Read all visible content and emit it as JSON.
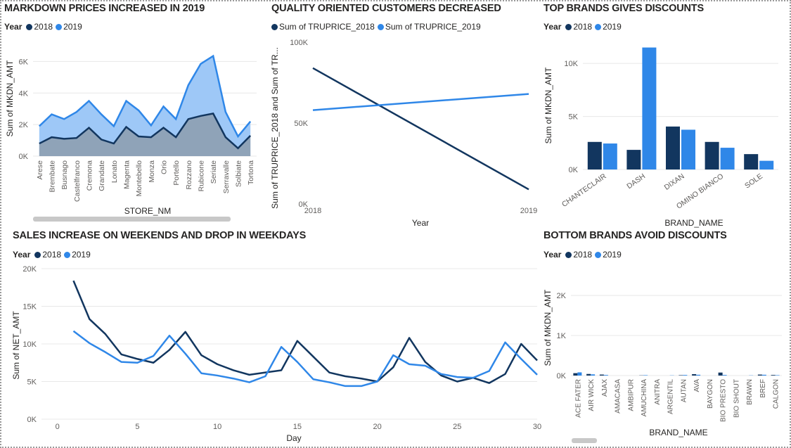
{
  "colors": {
    "dark": "#12365f",
    "light": "#2f87e8",
    "area_light": "#9ec8f7",
    "area_dark": "#8fa3b8",
    "grid": "#e8e8e8"
  },
  "chart_data": [
    {
      "id": "markdown",
      "type": "area",
      "title": "MARKDOWN PRICES INCREASED IN 2019",
      "legend_title": "Year",
      "xlabel": "STORE_NM",
      "ylabel": "Sum of MKDN_AMT",
      "yticks": [
        "0K",
        "2K",
        "4K",
        "6K"
      ],
      "ylim": [
        0,
        7000
      ],
      "categories": [
        "Arese",
        "Brembate",
        "Busnago",
        "Castelfranco",
        "Cremona",
        "Grandate",
        "Lonato",
        "Magenta",
        "Montebello",
        "Monza",
        "Orio",
        "Portello",
        "Rozzano",
        "Rubicone",
        "Seriate",
        "Serravalle",
        "Solbiate",
        "Tortona"
      ],
      "series": [
        {
          "name": "2018",
          "values": [
            800,
            1200,
            1100,
            1150,
            1800,
            1050,
            800,
            1850,
            1250,
            1200,
            1800,
            1200,
            2350,
            2550,
            2700,
            1200,
            500,
            1300
          ]
        },
        {
          "name": "2019",
          "values": [
            1900,
            2650,
            2350,
            2800,
            3500,
            2650,
            1900,
            3500,
            2900,
            1950,
            3150,
            2350,
            4500,
            5850,
            6350,
            2800,
            1250,
            2200
          ]
        }
      ]
    },
    {
      "id": "quality",
      "type": "line",
      "title": "QUALITY ORIENTED CUSTOMERS DECREASED",
      "legend": [
        "Sum of TRUPRICE_2018",
        "Sum of TRUPRICE_2019"
      ],
      "xlabel": "Year",
      "ylabel": "Sum of TRUPRICE_2018 and Sum of TR...",
      "yticks": [
        "0K",
        "50K",
        "100K"
      ],
      "ylim": [
        0,
        100000
      ],
      "x": [
        "2018",
        "2019"
      ],
      "series": [
        {
          "name": "Sum of TRUPRICE_2018",
          "values": [
            84000,
            9000
          ]
        },
        {
          "name": "Sum of TRUPRICE_2019",
          "values": [
            58000,
            68000
          ]
        }
      ]
    },
    {
      "id": "top_brands",
      "type": "bar",
      "title": "TOP BRANDS GIVES DISCOUNTS",
      "legend_title": "Year",
      "xlabel": "BRAND_NAME",
      "ylabel": "Sum of MKDN_AMT",
      "yticks": [
        "0K",
        "5K",
        "10K"
      ],
      "ylim": [
        0,
        12000
      ],
      "categories": [
        "CHANTECLAIR",
        "DASH",
        "DIXAN",
        "OMINO BIANCO",
        "SOLE"
      ],
      "series": [
        {
          "name": "2018",
          "values": [
            2600,
            1850,
            4050,
            2600,
            1450
          ]
        },
        {
          "name": "2019",
          "values": [
            2450,
            11500,
            3750,
            2050,
            820
          ]
        }
      ]
    },
    {
      "id": "sales",
      "type": "line",
      "title": "SALES INCREASE ON WEEKENDS AND DROP IN WEEKDAYS",
      "legend_title": "Year",
      "xlabel": "Day",
      "ylabel": "Sum of NET_AMT",
      "yticks": [
        "0K",
        "5K",
        "10K",
        "15K",
        "20K"
      ],
      "xticks": [
        "0",
        "5",
        "10",
        "15",
        "20",
        "25",
        "30"
      ],
      "ylim": [
        0,
        20000
      ],
      "xlim": [
        -1,
        30
      ],
      "x": [
        1,
        2,
        3,
        4,
        5,
        6,
        7,
        8,
        9,
        10,
        11,
        12,
        13,
        14,
        15,
        16,
        17,
        18,
        19,
        20,
        21,
        22,
        23,
        24,
        25,
        26,
        27,
        28,
        29,
        30
      ],
      "series": [
        {
          "name": "2018",
          "values": [
            18400,
            13300,
            11300,
            8600,
            8000,
            7500,
            9200,
            11600,
            8500,
            7300,
            6500,
            5900,
            6200,
            6500,
            10400,
            8300,
            6200,
            5700,
            5400,
            5000,
            6900,
            10800,
            7600,
            5800,
            5000,
            5500,
            4800,
            6000,
            10000,
            7800
          ]
        },
        {
          "name": "2019",
          "values": [
            11700,
            10100,
            8900,
            7600,
            7500,
            8400,
            11100,
            8700,
            6100,
            5800,
            5400,
            4900,
            5700,
            9600,
            7600,
            5300,
            4900,
            4400,
            4400,
            5000,
            8500,
            7300,
            7100,
            6000,
            5600,
            5500,
            6400,
            10200,
            8000,
            5900
          ]
        }
      ]
    },
    {
      "id": "bottom_brands",
      "type": "bar",
      "title": "BOTTOM BRANDS AVOID DISCOUNTS",
      "legend_title": "Year",
      "xlabel": "BRAND_NAME",
      "ylabel": "Sum of MKDN_AMT",
      "yticks": [
        "0K",
        "1K",
        "2K"
      ],
      "ylim": [
        0,
        2300
      ],
      "categories": [
        "ACE FATER",
        "AIR WICK",
        "AJAX",
        "AMACASA",
        "AMBIPUR",
        "AMUCHINA",
        "ANITRA",
        "ARGENTIL",
        "AUTAN",
        "AVA",
        "BAYGON",
        "BIO PRESTO",
        "BIO SHOUT",
        "BRAWN",
        "BREF",
        "CALGON"
      ],
      "series": [
        {
          "name": "2018",
          "values": [
            60,
            40,
            25,
            0,
            0,
            5,
            0,
            0,
            10,
            35,
            0,
            75,
            0,
            0,
            25,
            15
          ]
        },
        {
          "name": "2019",
          "values": [
            80,
            30,
            15,
            0,
            0,
            10,
            0,
            5,
            15,
            20,
            0,
            15,
            0,
            5,
            20,
            10
          ]
        }
      ]
    }
  ]
}
